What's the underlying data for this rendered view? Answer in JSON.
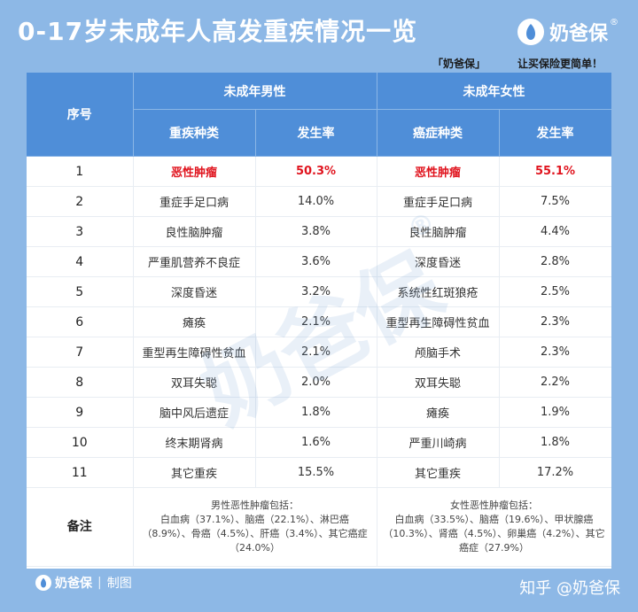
{
  "header": {
    "title": "0-17岁未成年人高发重疾情况一览",
    "logo_text": "奶爸保",
    "logo_reg": "®",
    "tagline_brand": "「奶爸保」",
    "tagline": "让买保险更简单！"
  },
  "table": {
    "col_index": "序号",
    "male_group": "未成年男性",
    "female_group": "未成年女性",
    "male_cat": "重疾种类",
    "male_rate": "发生率",
    "female_cat": "癌症种类",
    "female_rate": "发生率",
    "rows": [
      {
        "idx": "1",
        "male_cat": "恶性肿瘤",
        "male_rate": "50.3%",
        "female_cat": "恶性肿瘤",
        "female_rate": "55.1%"
      },
      {
        "idx": "2",
        "male_cat": "重症手足口病",
        "male_rate": "14.0%",
        "female_cat": "重症手足口病",
        "female_rate": "7.5%"
      },
      {
        "idx": "3",
        "male_cat": "良性脑肿瘤",
        "male_rate": "3.8%",
        "female_cat": "良性脑肿瘤",
        "female_rate": "4.4%"
      },
      {
        "idx": "4",
        "male_cat": "严重肌营养不良症",
        "male_rate": "3.6%",
        "female_cat": "深度昏迷",
        "female_rate": "2.8%"
      },
      {
        "idx": "5",
        "male_cat": "深度昏迷",
        "male_rate": "3.2%",
        "female_cat": "系统性红斑狼疮",
        "female_rate": "2.5%"
      },
      {
        "idx": "6",
        "male_cat": "瘫痪",
        "male_rate": "2.1%",
        "female_cat": "重型再生障碍性贫血",
        "female_rate": "2.3%"
      },
      {
        "idx": "7",
        "male_cat": "重型再生障碍性贫血",
        "male_rate": "2.1%",
        "female_cat": "颅脑手术",
        "female_rate": "2.3%"
      },
      {
        "idx": "8",
        "male_cat": "双耳失聪",
        "male_rate": "2.0%",
        "female_cat": "双耳失聪",
        "female_rate": "2.2%"
      },
      {
        "idx": "9",
        "male_cat": "脑中风后遗症",
        "male_rate": "1.8%",
        "female_cat": "瘫痪",
        "female_rate": "1.9%"
      },
      {
        "idx": "10",
        "male_cat": "终末期肾病",
        "male_rate": "1.6%",
        "female_cat": "严重川崎病",
        "female_rate": "1.8%"
      },
      {
        "idx": "11",
        "male_cat": "其它重疾",
        "male_rate": "15.5%",
        "female_cat": "其它重疾",
        "female_rate": "17.2%"
      }
    ],
    "notes_label": "备注",
    "male_note_title": "男性恶性肿瘤包括：",
    "male_note_body": "白血病（37.1%）、脑癌（22.1%）、淋巴癌（8.9%）、骨癌（4.5%）、肝癌（3.4%）、其它癌症（24.0%）",
    "female_note_title": "女性恶性肿瘤包括：",
    "female_note_body": "白血病（33.5%）、脑癌（19.6%）、甲状腺癌（10.3%）、肾癌（4.5%）、卵巢癌（4.2%）、其它癌症（27.9%）"
  },
  "watermark": {
    "text": "奶爸保",
    "reg": "®"
  },
  "footer": {
    "brand": "奶爸保",
    "made": "制图",
    "zhihu": "知乎 @奶爸保"
  },
  "colors": {
    "background": "#8db8e6",
    "header_blue": "#4f8ed8",
    "highlight_red": "#e0141e"
  }
}
